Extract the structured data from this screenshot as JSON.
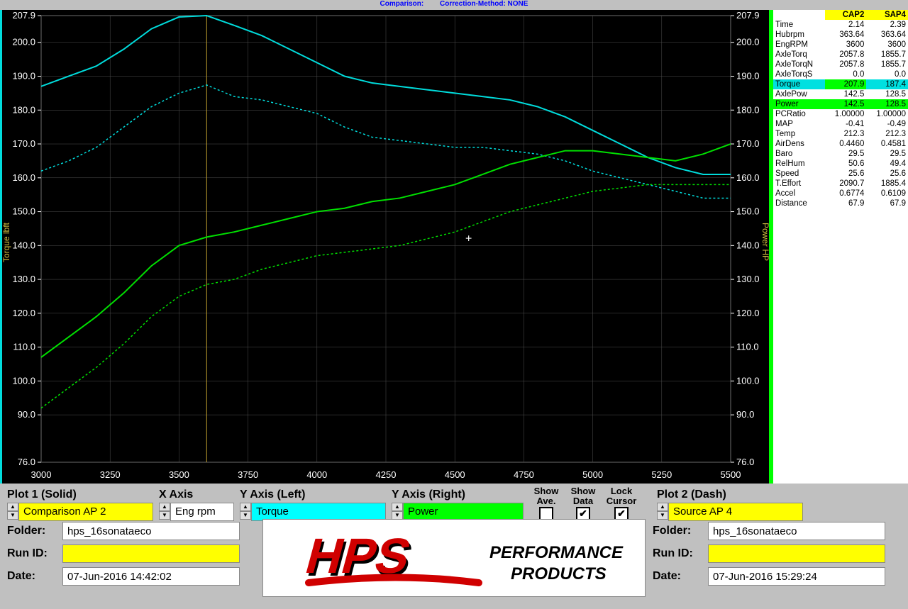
{
  "header": {
    "comparison_label": "Comparison:",
    "correction_label": "Correction-Method: NONE"
  },
  "chart": {
    "type": "line",
    "background_color": "#000000",
    "grid_color": "#505050",
    "axis_tick_color": "#ffffff",
    "cursor_line_color": "#c0a030",
    "cursor_x": 3600,
    "x_axis": {
      "min": 3000,
      "max": 5500,
      "ticks": [
        3000,
        3250,
        3500,
        3750,
        4000,
        4250,
        4500,
        4750,
        5000,
        5250,
        5500
      ]
    },
    "y_left": {
      "label": "Torque lbft",
      "label_color": "#d4c040",
      "ticks": [
        76.0,
        90.0,
        100.0,
        110.0,
        120.0,
        130.0,
        140.0,
        150.0,
        160.0,
        170.0,
        180.0,
        190.0,
        200.0,
        207.9
      ]
    },
    "y_right": {
      "label": "Power HP",
      "label_color": "#d4c040",
      "ticks": [
        76.0,
        90.0,
        100.0,
        110.0,
        120.0,
        130.0,
        140.0,
        150.0,
        160.0,
        170.0,
        180.0,
        190.0,
        200.0,
        207.9
      ]
    },
    "y_min": 76.0,
    "y_max": 207.9,
    "series": [
      {
        "name": "Torque CAP2 (solid)",
        "color": "#00dcdc",
        "dash": "none",
        "width": 2,
        "points": [
          [
            3000,
            187
          ],
          [
            3100,
            190
          ],
          [
            3200,
            193
          ],
          [
            3300,
            198
          ],
          [
            3400,
            204
          ],
          [
            3500,
            207.5
          ],
          [
            3600,
            207.9
          ],
          [
            3700,
            205
          ],
          [
            3800,
            202
          ],
          [
            3900,
            198
          ],
          [
            4000,
            194
          ],
          [
            4100,
            190
          ],
          [
            4200,
            188
          ],
          [
            4300,
            187
          ],
          [
            4400,
            186
          ],
          [
            4500,
            185
          ],
          [
            4600,
            184
          ],
          [
            4700,
            183
          ],
          [
            4800,
            181
          ],
          [
            4900,
            178
          ],
          [
            5000,
            174
          ],
          [
            5100,
            170
          ],
          [
            5200,
            166
          ],
          [
            5300,
            163
          ],
          [
            5400,
            161
          ],
          [
            5500,
            161
          ]
        ]
      },
      {
        "name": "Torque SAP4 (dash)",
        "color": "#00dcdc",
        "dash": "3,3",
        "width": 1.5,
        "points": [
          [
            3000,
            162
          ],
          [
            3100,
            165
          ],
          [
            3200,
            169
          ],
          [
            3300,
            175
          ],
          [
            3400,
            181
          ],
          [
            3500,
            185
          ],
          [
            3600,
            187.4
          ],
          [
            3700,
            184
          ],
          [
            3800,
            183
          ],
          [
            3900,
            181
          ],
          [
            4000,
            179
          ],
          [
            4100,
            175
          ],
          [
            4200,
            172
          ],
          [
            4300,
            171
          ],
          [
            4400,
            170
          ],
          [
            4500,
            169
          ],
          [
            4600,
            169
          ],
          [
            4700,
            168
          ],
          [
            4800,
            167
          ],
          [
            4900,
            165
          ],
          [
            5000,
            162
          ],
          [
            5100,
            160
          ],
          [
            5200,
            158
          ],
          [
            5300,
            156
          ],
          [
            5400,
            154
          ],
          [
            5500,
            154
          ]
        ]
      },
      {
        "name": "Power CAP2 (solid)",
        "color": "#00e000",
        "dash": "none",
        "width": 2,
        "points": [
          [
            3000,
            107
          ],
          [
            3100,
            113
          ],
          [
            3200,
            119
          ],
          [
            3300,
            126
          ],
          [
            3400,
            134
          ],
          [
            3500,
            140
          ],
          [
            3600,
            142.5
          ],
          [
            3700,
            144
          ],
          [
            3800,
            146
          ],
          [
            3900,
            148
          ],
          [
            4000,
            150
          ],
          [
            4100,
            151
          ],
          [
            4200,
            153
          ],
          [
            4300,
            154
          ],
          [
            4400,
            156
          ],
          [
            4500,
            158
          ],
          [
            4600,
            161
          ],
          [
            4700,
            164
          ],
          [
            4800,
            166
          ],
          [
            4900,
            168
          ],
          [
            5000,
            168
          ],
          [
            5100,
            167
          ],
          [
            5200,
            166
          ],
          [
            5300,
            165
          ],
          [
            5400,
            167
          ],
          [
            5500,
            170
          ]
        ]
      },
      {
        "name": "Power SAP4 (dash)",
        "color": "#00e000",
        "dash": "3,3",
        "width": 1.5,
        "points": [
          [
            3000,
            92
          ],
          [
            3100,
            98
          ],
          [
            3200,
            104
          ],
          [
            3300,
            111
          ],
          [
            3400,
            119
          ],
          [
            3500,
            125
          ],
          [
            3600,
            128.5
          ],
          [
            3700,
            130
          ],
          [
            3800,
            133
          ],
          [
            3900,
            135
          ],
          [
            4000,
            137
          ],
          [
            4100,
            138
          ],
          [
            4200,
            139
          ],
          [
            4300,
            140
          ],
          [
            4400,
            142
          ],
          [
            4500,
            144
          ],
          [
            4600,
            147
          ],
          [
            4700,
            150
          ],
          [
            4800,
            152
          ],
          [
            4900,
            154
          ],
          [
            5000,
            156
          ],
          [
            5100,
            157
          ],
          [
            5200,
            158
          ],
          [
            5300,
            158
          ],
          [
            5400,
            158
          ],
          [
            5500,
            158
          ]
        ]
      }
    ]
  },
  "data_table": {
    "col1_header": "CAP2",
    "col2_header": "SAP4",
    "rows": [
      {
        "label": "Time",
        "cap2": "2.14",
        "sap4": "2.39"
      },
      {
        "label": "Hubrpm",
        "cap2": "363.64",
        "sap4": "363.64"
      },
      {
        "label": "EngRPM",
        "cap2": "3600",
        "sap4": "3600"
      },
      {
        "label": "AxleTorq",
        "cap2": "2057.8",
        "sap4": "1855.7"
      },
      {
        "label": "AxleTorqN",
        "cap2": "2057.8",
        "sap4": "1855.7"
      },
      {
        "label": "AxleTorqS",
        "cap2": "0.0",
        "sap4": "0.0"
      },
      {
        "label": "Torque",
        "cap2": "207.9",
        "sap4": "187.4",
        "highlight": "torque"
      },
      {
        "label": "AxlePow",
        "cap2": "142.5",
        "sap4": "128.5"
      },
      {
        "label": "Power",
        "cap2": "142.5",
        "sap4": "128.5",
        "highlight": "power"
      },
      {
        "label": "PCRatio",
        "cap2": "1.00000",
        "sap4": "1.00000"
      },
      {
        "label": "MAP",
        "cap2": "-0.41",
        "sap4": "-0.49"
      },
      {
        "label": "Temp",
        "cap2": "212.3",
        "sap4": "212.3"
      },
      {
        "label": "AirDens",
        "cap2": "0.4460",
        "sap4": "0.4581"
      },
      {
        "label": "Baro",
        "cap2": "29.5",
        "sap4": "29.5"
      },
      {
        "label": "RelHum",
        "cap2": "50.6",
        "sap4": "49.4"
      },
      {
        "label": "Speed",
        "cap2": "25.6",
        "sap4": "25.6"
      },
      {
        "label": "T.Effort",
        "cap2": "2090.7",
        "sap4": "1885.4"
      },
      {
        "label": "Accel",
        "cap2": "0.6774",
        "sap4": "0.6109"
      },
      {
        "label": "Distance",
        "cap2": "67.9",
        "sap4": "67.9"
      }
    ]
  },
  "controls": {
    "plot1_heading": "Plot 1 (Solid)",
    "plot1_value": "Comparison AP 2",
    "xaxis_heading": "X Axis",
    "xaxis_value": "Eng rpm",
    "yleft_heading": "Y Axis (Left)",
    "yleft_value": "Torque",
    "yright_heading": "Y Axis (Right)",
    "yright_value": "Power",
    "show_ave_heading": "Show\nAve.",
    "show_data_heading": "Show\nData",
    "lock_cursor_heading": "Lock\nCursor",
    "show_ave_checked": false,
    "show_data_checked": true,
    "lock_cursor_checked": true,
    "plot2_heading": "Plot 2 (Dash)",
    "plot2_value": "Source AP 4"
  },
  "plot1_info": {
    "folder_label": "Folder:",
    "folder_value": "hps_16sonataeco",
    "runid_label": "Run ID:",
    "runid_value": "",
    "date_label": "Date:",
    "date_value": "07-Jun-2016  14:42:02"
  },
  "plot2_info": {
    "folder_label": "Folder:",
    "folder_value": "hps_16sonataeco",
    "runid_label": "Run ID:",
    "runid_value": "",
    "date_label": "Date:",
    "date_value": "07-Jun-2016  15:29:24"
  },
  "logo": {
    "brand": "HPS",
    "tagline1": "PERFORMANCE",
    "tagline2": "PRODUCTS"
  }
}
